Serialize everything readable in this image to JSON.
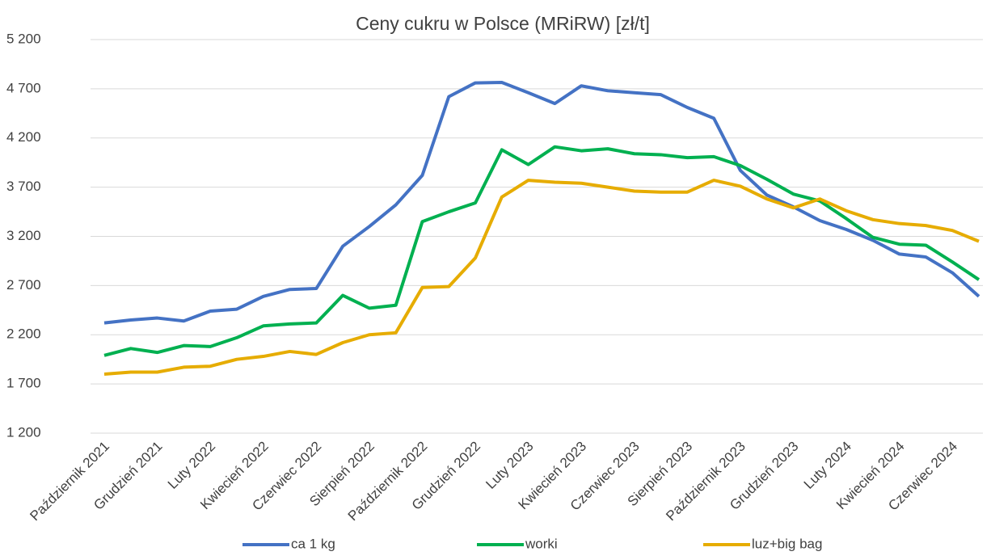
{
  "chart_data": {
    "type": "line",
    "title": "Ceny cukru w Polsce (MRiRW) [zł/t]",
    "categories": [
      "Październik 2021",
      null,
      "Grudzień 2021",
      null,
      "Luty 2022",
      null,
      "Kwiecień 2022",
      null,
      "Czerwiec 2022",
      null,
      "Sierpień 2022",
      null,
      "Październik 2022",
      null,
      "Grudzień 2022",
      null,
      "Luty 2023",
      null,
      "Kwiecień 2023",
      null,
      "Czerwiec 2023",
      null,
      "Sierpień 2023",
      null,
      "Październik 2023",
      null,
      "Grudzień 2023",
      null,
      "Luty 2024",
      null,
      "Kwiecień 2024",
      null,
      "Czerwiec 2024",
      null
    ],
    "series": [
      {
        "name": "ca 1 kg",
        "color": "#4472c4",
        "values": [
          2320,
          2350,
          2370,
          2340,
          2440,
          2460,
          2590,
          2660,
          2670,
          3100,
          3300,
          3520,
          3820,
          4620,
          4760,
          4765,
          4660,
          4550,
          4730,
          4680,
          4660,
          4640,
          4510,
          4400,
          3870,
          3620,
          3500,
          3360,
          3270,
          3160,
          3020,
          2990,
          2830,
          2590
        ]
      },
      {
        "name": "worki",
        "color": "#00b050",
        "values": [
          1990,
          2060,
          2020,
          2090,
          2080,
          2170,
          2290,
          2310,
          2320,
          2600,
          2470,
          2500,
          3350,
          3450,
          3540,
          4080,
          3930,
          4110,
          4070,
          4090,
          4040,
          4030,
          4000,
          4010,
          3920,
          3780,
          3630,
          3560,
          3380,
          3190,
          3120,
          3110,
          2940,
          2760
        ]
      },
      {
        "name": "luz+big bag",
        "color": "#e6ac00",
        "values": [
          1800,
          1820,
          1820,
          1870,
          1880,
          1950,
          1980,
          2030,
          2000,
          2120,
          2200,
          2220,
          2680,
          2690,
          2980,
          3600,
          3770,
          3750,
          3740,
          3700,
          3660,
          3650,
          3650,
          3770,
          3710,
          3580,
          3490,
          3580,
          3460,
          3370,
          3330,
          3310,
          3260,
          3150
        ]
      }
    ],
    "ylim": [
      1200,
      5200
    ],
    "yticks": [
      {
        "value": 1200,
        "label": "1 200"
      },
      {
        "value": 1700,
        "label": "1 700"
      },
      {
        "value": 2200,
        "label": "2 200"
      },
      {
        "value": 2700,
        "label": "2 700"
      },
      {
        "value": 3200,
        "label": "3 200"
      },
      {
        "value": 3700,
        "label": "3 700"
      },
      {
        "value": 4200,
        "label": "4 200"
      },
      {
        "value": 4700,
        "label": "4 700"
      },
      {
        "value": 5200,
        "label": "5 200"
      }
    ],
    "grid": true,
    "legend": "bottom"
  }
}
